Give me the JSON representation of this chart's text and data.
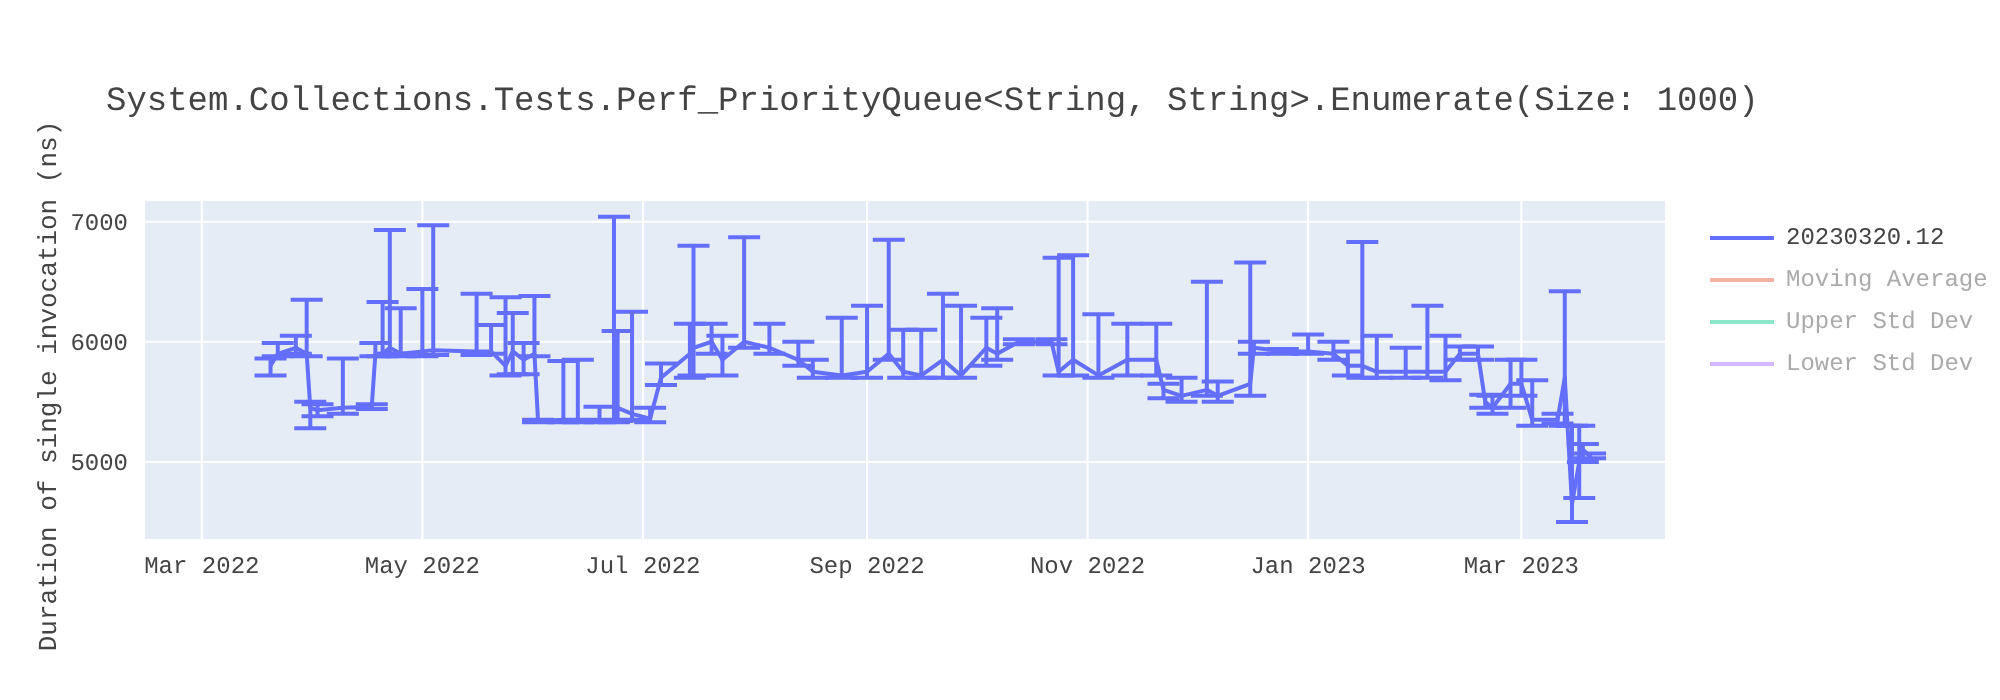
{
  "chart_data": {
    "type": "line",
    "title": "System.Collections.Tests.Perf_PriorityQueue<String, String>.Enumerate(Size: 1000)",
    "ylabel": "Duration of single invocation (ns)",
    "x": [
      "2022-03-20",
      "2022-03-22",
      "2022-03-27",
      "2022-03-30",
      "2022-03-31",
      "2022-04-02",
      "2022-04-09",
      "2022-04-17",
      "2022-04-18",
      "2022-04-20",
      "2022-04-22",
      "2022-04-25",
      "2022-05-01",
      "2022-05-04",
      "2022-05-16",
      "2022-05-20",
      "2022-05-24",
      "2022-05-26",
      "2022-05-29",
      "2022-06-01",
      "2022-06-02",
      "2022-06-09",
      "2022-06-13",
      "2022-06-19",
      "2022-06-23",
      "2022-06-24",
      "2022-06-28",
      "2022-07-03",
      "2022-07-06",
      "2022-07-14",
      "2022-07-15",
      "2022-07-20",
      "2022-07-23",
      "2022-07-29",
      "2022-08-05",
      "2022-08-13",
      "2022-08-17",
      "2022-08-25",
      "2022-09-01",
      "2022-09-07",
      "2022-09-11",
      "2022-09-16",
      "2022-09-22",
      "2022-09-27",
      "2022-10-04",
      "2022-10-07",
      "2022-10-13",
      "2022-10-22",
      "2022-10-24",
      "2022-10-28",
      "2022-11-04",
      "2022-11-12",
      "2022-11-20",
      "2022-11-22",
      "2022-11-27",
      "2022-12-04",
      "2022-12-07",
      "2022-12-16",
      "2022-12-17",
      "2022-12-25",
      "2023-01-01",
      "2023-01-08",
      "2023-01-12",
      "2023-01-16",
      "2023-01-20",
      "2023-01-28",
      "2023-02-03",
      "2023-02-08",
      "2023-02-12",
      "2023-02-17",
      "2023-02-19",
      "2023-02-21",
      "2023-02-26",
      "2023-03-01",
      "2023-03-04",
      "2023-03-11",
      "2023-03-13",
      "2023-03-15",
      "2023-03-17",
      "2023-03-18",
      "2023-03-20"
    ],
    "series": [
      {
        "name": "20230320.12",
        "color": "#636efa",
        "values": [
          5800,
          5900,
          5950,
          5900,
          5450,
          5430,
          5450,
          5460,
          5900,
          5900,
          5950,
          5900,
          5920,
          5930,
          5920,
          5920,
          5800,
          5920,
          5850,
          5900,
          5340,
          5350,
          5350,
          5350,
          5350,
          5450,
          5400,
          5360,
          5700,
          5900,
          5950,
          6000,
          5850,
          6000,
          5950,
          5850,
          5750,
          5720,
          5750,
          5900,
          5750,
          5720,
          5850,
          5720,
          5950,
          5900,
          6000,
          6000,
          5750,
          5850,
          5720,
          5850,
          5850,
          5600,
          5550,
          5600,
          5550,
          5650,
          5950,
          5920,
          5920,
          5900,
          5800,
          5800,
          5750,
          5750,
          5750,
          5750,
          5900,
          5900,
          5500,
          5450,
          5650,
          5650,
          5350,
          5350,
          5700,
          4650,
          5000,
          5100,
          5050
        ],
        "errors": [
          [
            5720,
            5860
          ],
          [
            5880,
            5990
          ],
          [
            5900,
            6050
          ],
          [
            5880,
            6350
          ],
          [
            5280,
            5500
          ],
          [
            5380,
            5480
          ],
          [
            5400,
            5860
          ],
          [
            5440,
            5480
          ],
          [
            5880,
            5990
          ],
          [
            5880,
            6330
          ],
          [
            5900,
            6930
          ],
          [
            5880,
            6280
          ],
          [
            5880,
            6440
          ],
          [
            5890,
            6970
          ],
          [
            5890,
            6400
          ],
          [
            5900,
            6140
          ],
          [
            5720,
            6370
          ],
          [
            5730,
            6240
          ],
          [
            5730,
            5990
          ],
          [
            5880,
            6380
          ],
          [
            5330,
            5350
          ],
          [
            5330,
            5840
          ],
          [
            5330,
            5850
          ],
          [
            5330,
            5460
          ],
          [
            5330,
            7040
          ],
          [
            5340,
            6090
          ],
          [
            5350,
            6250
          ],
          [
            5330,
            5450
          ],
          [
            5640,
            5820
          ],
          [
            5700,
            6150
          ],
          [
            5720,
            6800
          ],
          [
            5900,
            6150
          ],
          [
            5720,
            6050
          ],
          [
            5950,
            6870
          ],
          [
            5900,
            6150
          ],
          [
            5800,
            6000
          ],
          [
            5700,
            5850
          ],
          [
            5700,
            6200
          ],
          [
            5700,
            6300
          ],
          [
            5850,
            6850
          ],
          [
            5700,
            6100
          ],
          [
            5700,
            6100
          ],
          [
            5700,
            6400
          ],
          [
            5700,
            6300
          ],
          [
            5800,
            6200
          ],
          [
            5850,
            6280
          ],
          [
            5980,
            6020
          ],
          [
            5980,
            6020
          ],
          [
            5720,
            6700
          ],
          [
            5720,
            6720
          ],
          [
            5700,
            6230
          ],
          [
            5720,
            6150
          ],
          [
            5720,
            6150
          ],
          [
            5530,
            5650
          ],
          [
            5500,
            5700
          ],
          [
            5550,
            6500
          ],
          [
            5500,
            5670
          ],
          [
            5550,
            6660
          ],
          [
            5900,
            6000
          ],
          [
            5900,
            5940
          ],
          [
            5900,
            6060
          ],
          [
            5850,
            6000
          ],
          [
            5720,
            5920
          ],
          [
            5700,
            6830
          ],
          [
            5700,
            6050
          ],
          [
            5700,
            5950
          ],
          [
            5700,
            6300
          ],
          [
            5680,
            6050
          ],
          [
            5850,
            5960
          ],
          [
            5850,
            5960
          ],
          [
            5450,
            5560
          ],
          [
            5400,
            5550
          ],
          [
            5450,
            5850
          ],
          [
            5550,
            5850
          ],
          [
            5300,
            5680
          ],
          [
            5320,
            5400
          ],
          [
            5300,
            6420
          ],
          [
            4500,
            5300
          ],
          [
            4700,
            5300
          ],
          [
            5000,
            5150
          ],
          [
            5030,
            5070
          ]
        ]
      },
      {
        "name": "Moving Average",
        "color": "#f4b2a4",
        "values": [
          null,
          null,
          null,
          null,
          null,
          null,
          null,
          null,
          null,
          null,
          null,
          null,
          null,
          null,
          null,
          null,
          null,
          null,
          null,
          null,
          null,
          null,
          null,
          null,
          null,
          null,
          null,
          null,
          null,
          null,
          null,
          null,
          null,
          null,
          null,
          null,
          null,
          null,
          null,
          null,
          null,
          null,
          null,
          null,
          null,
          null,
          null,
          null,
          null,
          null,
          null,
          null,
          null,
          null,
          null,
          null,
          null,
          null,
          null,
          null,
          null,
          null,
          null,
          null,
          null,
          null,
          null,
          null,
          null,
          null,
          null,
          null,
          null,
          null,
          null,
          null,
          null,
          null,
          null,
          null,
          null
        ]
      },
      {
        "name": "Upper Std Dev",
        "color": "#8ce6c9",
        "values": [
          null,
          null,
          null,
          null,
          null,
          null,
          null,
          null,
          null,
          null,
          null,
          null,
          null,
          null,
          null,
          null,
          null,
          null,
          null,
          null,
          null,
          null,
          null,
          null,
          null,
          null,
          null,
          null,
          null,
          null,
          null,
          null,
          null,
          null,
          null,
          null,
          null,
          null,
          null,
          null,
          null,
          null,
          null,
          null,
          null,
          null,
          null,
          null,
          null,
          null,
          null,
          null,
          null,
          null,
          null,
          null,
          null,
          null,
          null,
          null,
          null,
          null,
          null,
          null,
          null,
          null,
          null,
          null,
          null,
          null,
          null,
          null,
          null,
          null,
          null,
          null,
          null,
          null,
          null,
          null,
          null
        ]
      },
      {
        "name": "Lower Std Dev",
        "color": "#d4b8fc",
        "values": [
          null,
          null,
          null,
          null,
          null,
          null,
          null,
          null,
          null,
          null,
          null,
          null,
          null,
          null,
          null,
          null,
          null,
          null,
          null,
          null,
          null,
          null,
          null,
          null,
          null,
          null,
          null,
          null,
          null,
          null,
          null,
          null,
          null,
          null,
          null,
          null,
          null,
          null,
          null,
          null,
          null,
          null,
          null,
          null,
          null,
          null,
          null,
          null,
          null,
          null,
          null,
          null,
          null,
          null,
          null,
          null,
          null,
          null,
          null,
          null,
          null,
          null,
          null,
          null,
          null,
          null,
          null,
          null,
          null,
          null,
          null,
          null,
          null,
          null,
          null,
          null,
          null,
          null,
          null,
          null,
          null
        ]
      }
    ],
    "xlim": [
      "2022-02-13",
      "2023-04-10"
    ],
    "xticks": [
      {
        "value": "2022-03-01",
        "label": "Mar 2022"
      },
      {
        "value": "2022-05-01",
        "label": "May 2022"
      },
      {
        "value": "2022-07-01",
        "label": "Jul 2022"
      },
      {
        "value": "2022-09-01",
        "label": "Sep 2022"
      },
      {
        "value": "2022-11-01",
        "label": "Nov 2022"
      },
      {
        "value": "2023-01-01",
        "label": "Jan 2023"
      },
      {
        "value": "2023-03-01",
        "label": "Mar 2023"
      }
    ],
    "ylim": [
      4350,
      7180
    ],
    "yticks": [
      5000,
      6000,
      7000
    ],
    "grid": true,
    "legend": "right",
    "marker": "none",
    "line_style": "solid"
  }
}
